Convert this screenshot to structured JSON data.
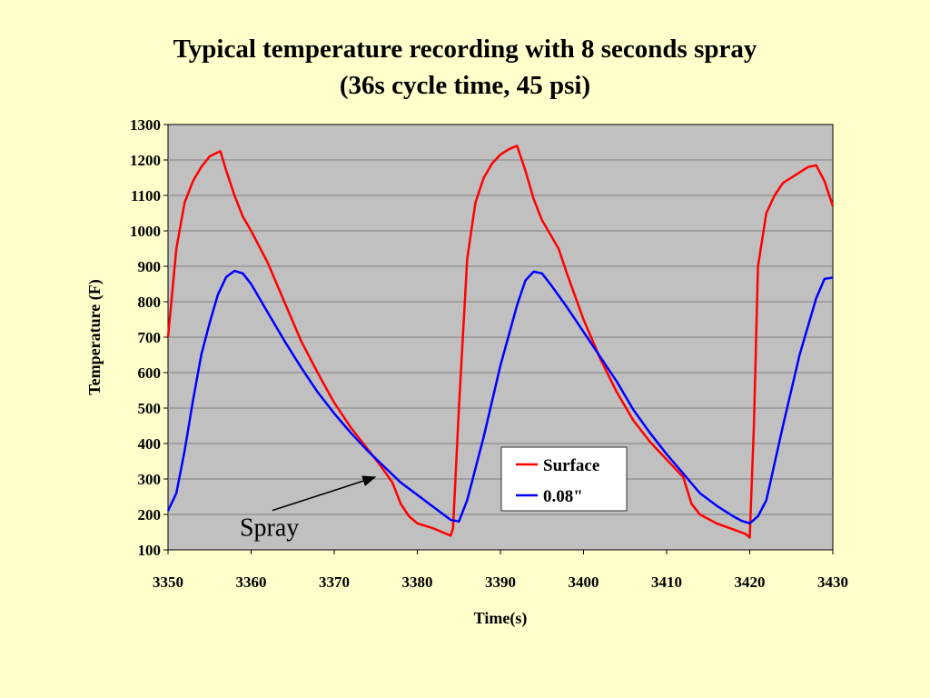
{
  "chart_data": {
    "type": "line",
    "title_line1": "Typical temperature recording with 8 seconds spray",
    "title_line2": "(36s cycle time, 45 psi)",
    "xlabel": "Time(s)",
    "ylabel": "Temperature (F)",
    "xlim": [
      3350,
      3430
    ],
    "ylim": [
      100,
      1300
    ],
    "xticks": [
      3350,
      3360,
      3370,
      3380,
      3390,
      3400,
      3410,
      3420,
      3430
    ],
    "yticks": [
      100,
      200,
      300,
      400,
      500,
      600,
      700,
      800,
      900,
      1000,
      1100,
      1200,
      1300
    ],
    "grid": "horizontal",
    "plot_background": "#c0c0c0",
    "legend": {
      "position": "bottom-right"
    },
    "annotation": {
      "text": "Spray",
      "arrow_to": [
        3376,
        300
      ],
      "text_at": [
        3363,
        165
      ]
    },
    "series": [
      {
        "name": "Surface",
        "color": "#ff0000",
        "points": [
          [
            3350,
            700
          ],
          [
            3351,
            950
          ],
          [
            3352,
            1080
          ],
          [
            3353,
            1140
          ],
          [
            3354,
            1180
          ],
          [
            3355,
            1210
          ],
          [
            3356.3,
            1225
          ],
          [
            3357,
            1170
          ],
          [
            3358,
            1100
          ],
          [
            3359,
            1040
          ],
          [
            3360,
            1000
          ],
          [
            3362,
            910
          ],
          [
            3364,
            800
          ],
          [
            3366,
            690
          ],
          [
            3368,
            600
          ],
          [
            3370,
            515
          ],
          [
            3372,
            445
          ],
          [
            3374,
            385
          ],
          [
            3375.5,
            340
          ],
          [
            3377,
            290
          ],
          [
            3378,
            230
          ],
          [
            3379,
            195
          ],
          [
            3380,
            175
          ],
          [
            3382,
            160
          ],
          [
            3384,
            140
          ],
          [
            3384.3,
            160
          ],
          [
            3385,
            500
          ],
          [
            3386,
            920
          ],
          [
            3387,
            1080
          ],
          [
            3388,
            1150
          ],
          [
            3389,
            1190
          ],
          [
            3390,
            1215
          ],
          [
            3391,
            1230
          ],
          [
            3392,
            1240
          ],
          [
            3393,
            1170
          ],
          [
            3394,
            1090
          ],
          [
            3395,
            1030
          ],
          [
            3396,
            990
          ],
          [
            3397,
            950
          ],
          [
            3398,
            880
          ],
          [
            3400,
            750
          ],
          [
            3402,
            640
          ],
          [
            3404,
            545
          ],
          [
            3406,
            465
          ],
          [
            3408,
            405
          ],
          [
            3410,
            355
          ],
          [
            3412,
            305
          ],
          [
            3413,
            230
          ],
          [
            3414,
            200
          ],
          [
            3416,
            175
          ],
          [
            3418,
            158
          ],
          [
            3419.5,
            145
          ],
          [
            3420,
            135
          ],
          [
            3420.5,
            450
          ],
          [
            3421,
            900
          ],
          [
            3422,
            1050
          ],
          [
            3423,
            1100
          ],
          [
            3424,
            1135
          ],
          [
            3425,
            1150
          ],
          [
            3426,
            1165
          ],
          [
            3427,
            1180
          ],
          [
            3428,
            1185
          ],
          [
            3429,
            1140
          ],
          [
            3430,
            1070
          ]
        ]
      },
      {
        "name": "0.08\"",
        "color": "#0000ff",
        "points": [
          [
            3350,
            210
          ],
          [
            3351,
            260
          ],
          [
            3352,
            380
          ],
          [
            3353,
            520
          ],
          [
            3354,
            650
          ],
          [
            3355,
            740
          ],
          [
            3356,
            820
          ],
          [
            3357,
            870
          ],
          [
            3358,
            887
          ],
          [
            3359,
            880
          ],
          [
            3360,
            850
          ],
          [
            3362,
            770
          ],
          [
            3364,
            690
          ],
          [
            3366,
            615
          ],
          [
            3368,
            545
          ],
          [
            3370,
            485
          ],
          [
            3372,
            430
          ],
          [
            3374,
            380
          ],
          [
            3376,
            335
          ],
          [
            3378,
            290
          ],
          [
            3380,
            255
          ],
          [
            3382,
            220
          ],
          [
            3384,
            185
          ],
          [
            3385,
            180
          ],
          [
            3386,
            240
          ],
          [
            3388,
            420
          ],
          [
            3390,
            620
          ],
          [
            3392,
            790
          ],
          [
            3393,
            860
          ],
          [
            3394,
            885
          ],
          [
            3395,
            880
          ],
          [
            3396,
            850
          ],
          [
            3398,
            785
          ],
          [
            3400,
            715
          ],
          [
            3402,
            645
          ],
          [
            3404,
            575
          ],
          [
            3406,
            495
          ],
          [
            3408,
            430
          ],
          [
            3410,
            370
          ],
          [
            3412,
            315
          ],
          [
            3414,
            260
          ],
          [
            3416,
            225
          ],
          [
            3418,
            195
          ],
          [
            3419,
            182
          ],
          [
            3420,
            175
          ],
          [
            3421,
            195
          ],
          [
            3422,
            240
          ],
          [
            3424,
            450
          ],
          [
            3426,
            650
          ],
          [
            3428,
            810
          ],
          [
            3429,
            865
          ],
          [
            3430,
            868
          ]
        ]
      }
    ]
  }
}
